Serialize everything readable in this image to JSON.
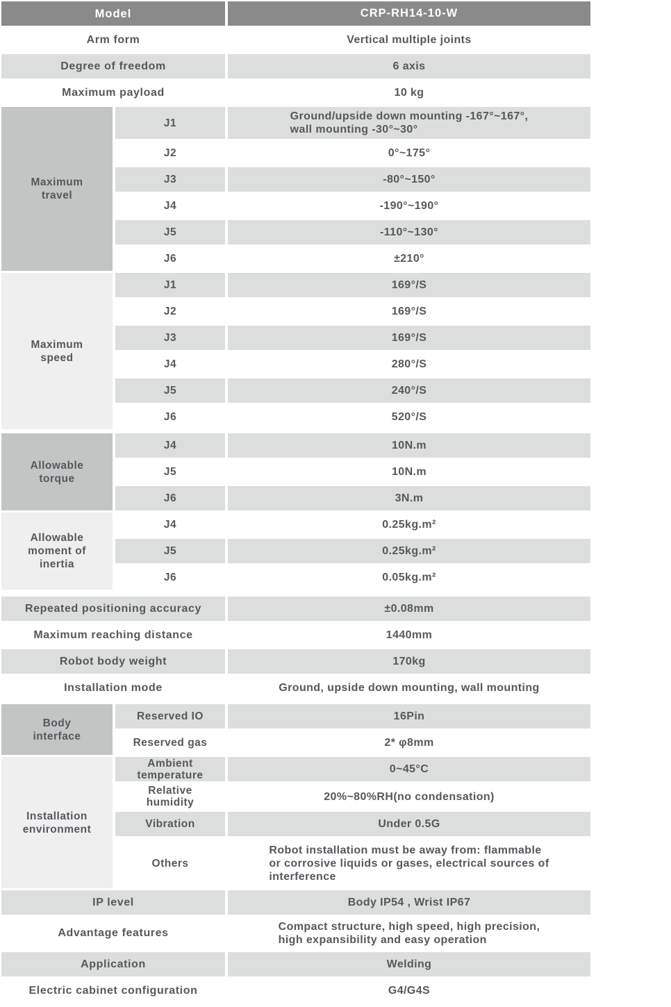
{
  "colors": {
    "header_bg": "#8a8a8a",
    "header_text": "#ffffff",
    "row_gray": "#dcdddd",
    "group_dark": "#c3c4c4",
    "group_light": "#efeff0",
    "text": "#55585c",
    "page_bg": "#ffffff"
  },
  "header": {
    "label": "Model",
    "value": "CRP-RH14-10-W"
  },
  "rows": {
    "arm_form": {
      "label": "Arm form",
      "value": "Vertical multiple joints"
    },
    "degree_of_freedom": {
      "label": "Degree of freedom",
      "value": "6 axis"
    },
    "maximum_payload": {
      "label": "Maximum payload",
      "value": "10 kg"
    },
    "repeated_positioning_accuracy": {
      "label": "Repeated positioning accuracy",
      "value": "±0.08mm"
    },
    "maximum_reaching_distance": {
      "label": "Maximum reaching distance",
      "value": "1440mm"
    },
    "robot_body_weight": {
      "label": "Robot body weight",
      "value": "170kg"
    },
    "installation_mode": {
      "label": "Installation mode",
      "value": "Ground, upside down mounting, wall mounting"
    },
    "ip_level": {
      "label": "IP level",
      "value": "Body IP54 , Wrist IP67"
    },
    "advantage_features": {
      "label": "Advantage features",
      "value": "Compact structure, high speed, high precision,\nhigh expansibility and easy operation"
    },
    "application": {
      "label": "Application",
      "value": "Welding"
    },
    "electric_cabinet_configuration": {
      "label": "Electric cabinet configuration",
      "value": "G4/G4S"
    }
  },
  "groups": {
    "maximum_travel": {
      "label": "Maximum travel",
      "rows": [
        {
          "sub": "J1",
          "value": "Ground/upside down mounting -167°~167°,\nwall mounting -30°~30°"
        },
        {
          "sub": "J2",
          "value": "0°~175°"
        },
        {
          "sub": "J3",
          "value": "-80°~150°"
        },
        {
          "sub": "J4",
          "value": "-190°~190°"
        },
        {
          "sub": "J5",
          "value": "-110°~130°"
        },
        {
          "sub": "J6",
          "value": "±210°"
        }
      ]
    },
    "maximum_speed": {
      "label": "Maximum speed",
      "rows": [
        {
          "sub": "J1",
          "value": "169°/S"
        },
        {
          "sub": "J2",
          "value": "169°/S"
        },
        {
          "sub": "J3",
          "value": "169°/S"
        },
        {
          "sub": "J4",
          "value": "280°/S"
        },
        {
          "sub": "J5",
          "value": "240°/S"
        },
        {
          "sub": "J6",
          "value": "520°/S"
        }
      ]
    },
    "allowable_torque": {
      "label": "Allowable torque",
      "rows": [
        {
          "sub": "J4",
          "value": "10N.m"
        },
        {
          "sub": "J5",
          "value": "10N.m"
        },
        {
          "sub": "J6",
          "value": "3N.m"
        }
      ]
    },
    "allowable_moment_of_inertia": {
      "label": "Allowable moment of inertia",
      "rows": [
        {
          "sub": "J4",
          "value": "0.25kg.m²"
        },
        {
          "sub": "J5",
          "value": "0.25kg.m²"
        },
        {
          "sub": "J6",
          "value": "0.05kg.m²"
        }
      ]
    },
    "body_interface": {
      "label": "Body interface",
      "rows": [
        {
          "sub": "Reserved IO",
          "value": "16Pin"
        },
        {
          "sub": "Reserved gas",
          "value": "2* φ8mm"
        }
      ]
    },
    "installation_environment": {
      "label": "Installation environment",
      "rows": [
        {
          "sub": "Ambient temperature",
          "value": "0~45°C"
        },
        {
          "sub": "Relative humidity",
          "value": "20%~80%RH(no condensation)"
        },
        {
          "sub": "Vibration",
          "value": "Under 0.5G"
        },
        {
          "sub": "Others",
          "value": "Robot installation must be away from: flammable\nor corrosive liquids or gases, electrical sources of\ninterference"
        }
      ]
    }
  }
}
